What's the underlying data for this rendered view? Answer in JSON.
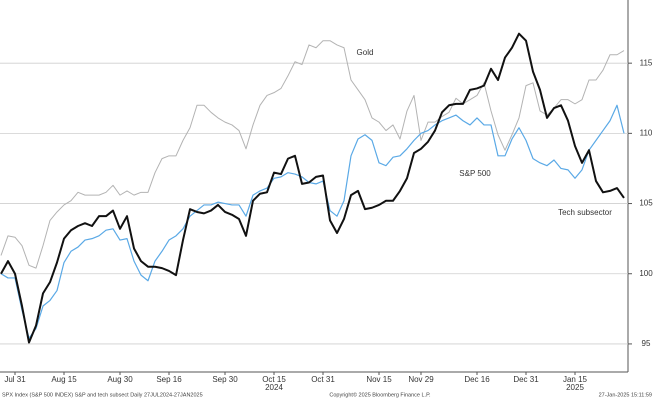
{
  "chart_data": {
    "type": "line",
    "categories": [
      null,
      null,
      "Jul 31",
      null,
      null,
      null,
      null,
      null,
      null,
      "Aug 15",
      null,
      null,
      null,
      null,
      null,
      null,
      null,
      "Aug 30",
      null,
      null,
      null,
      null,
      null,
      null,
      "Sep 16",
      null,
      null,
      null,
      null,
      null,
      null,
      null,
      "Sep 30",
      null,
      null,
      null,
      null,
      null,
      null,
      "Oct 15",
      null,
      null,
      null,
      null,
      null,
      null,
      "Oct 31",
      null,
      null,
      null,
      null,
      null,
      null,
      null,
      "Nov 15",
      null,
      null,
      null,
      null,
      null,
      "Nov 29",
      null,
      null,
      null,
      null,
      null,
      null,
      null,
      "Dec 16",
      null,
      null,
      null,
      null,
      null,
      null,
      "Dec 31",
      null,
      null,
      null,
      null,
      null,
      null,
      "Jan 15",
      null,
      null,
      null,
      null,
      null,
      null,
      null
    ],
    "year_labels": [
      "2024",
      "2025"
    ],
    "series": [
      {
        "name": "Gold",
        "color": "#b3b3b3",
        "values": [
          101.3,
          102.7,
          102.6,
          102.0,
          100.6,
          100.4,
          102.0,
          103.8,
          104.4,
          104.9,
          105.2,
          105.8,
          105.6,
          105.6,
          105.6,
          105.8,
          106.3,
          105.6,
          105.9,
          105.6,
          105.8,
          105.8,
          107.2,
          108.2,
          108.4,
          108.4,
          109.5,
          110.4,
          112.0,
          112.0,
          111.5,
          111.1,
          110.8,
          110.6,
          110.2,
          108.9,
          110.6,
          112.0,
          112.7,
          112.9,
          113.2,
          114.1,
          115.1,
          114.9,
          116.3,
          116.1,
          116.6,
          116.6,
          116.3,
          116.1,
          113.8,
          113.1,
          112.4,
          111.1,
          110.8,
          110.2,
          110.6,
          109.6,
          111.6,
          112.7,
          109.5,
          110.8,
          110.8,
          111.2,
          111.5,
          112.5,
          112.1,
          112.4,
          112.7,
          113.6,
          111.6,
          109.9,
          108.8,
          109.9,
          111.1,
          113.4,
          113.6,
          111.6,
          111.3,
          111.8,
          112.4,
          112.4,
          112.1,
          112.4,
          113.8,
          113.8,
          114.5,
          115.6,
          115.6,
          115.9
        ]
      },
      {
        "name": "S&P 500",
        "color": "#5aa9e6",
        "values": [
          100.0,
          99.7,
          99.7,
          97.4,
          95.4,
          96.1,
          97.7,
          98.1,
          98.8,
          100.8,
          101.6,
          101.9,
          102.4,
          102.5,
          102.7,
          103.1,
          103.2,
          102.4,
          102.5,
          100.9,
          99.9,
          99.5,
          100.9,
          101.6,
          102.4,
          102.7,
          103.2,
          104.1,
          104.5,
          104.9,
          104.9,
          105.1,
          105.0,
          104.9,
          104.9,
          104.1,
          105.6,
          105.9,
          106.1,
          106.8,
          106.9,
          107.2,
          107.1,
          106.9,
          106.5,
          106.4,
          106.6,
          104.5,
          104.1,
          105.2,
          108.4,
          109.6,
          109.9,
          109.5,
          107.9,
          107.7,
          108.3,
          108.4,
          108.9,
          109.5,
          110.0,
          110.2,
          110.6,
          110.9,
          111.1,
          111.3,
          110.9,
          110.6,
          111.1,
          110.6,
          110.6,
          108.4,
          108.4,
          109.6,
          110.4,
          109.5,
          108.2,
          107.9,
          107.7,
          108.1,
          107.5,
          107.4,
          106.8,
          107.4,
          108.8,
          109.5,
          110.2,
          110.9,
          112.0,
          110.0
        ]
      },
      {
        "name": "Tech subsector",
        "color": "#111111",
        "values": [
          100.0,
          100.9,
          100.0,
          97.7,
          95.1,
          96.3,
          98.6,
          99.4,
          100.8,
          102.5,
          103.1,
          103.4,
          103.6,
          103.4,
          104.1,
          104.1,
          104.5,
          103.2,
          104.1,
          101.8,
          100.9,
          100.5,
          100.5,
          100.4,
          100.2,
          99.9,
          102.4,
          104.6,
          104.4,
          104.3,
          104.5,
          104.9,
          104.4,
          104.2,
          103.9,
          102.7,
          105.2,
          105.7,
          105.8,
          107.2,
          107.1,
          108.2,
          108.4,
          106.4,
          106.5,
          106.9,
          107.0,
          103.8,
          102.9,
          103.9,
          105.6,
          105.9,
          104.6,
          104.7,
          104.9,
          105.2,
          105.2,
          105.9,
          106.8,
          108.6,
          108.9,
          109.4,
          110.2,
          111.5,
          112.0,
          112.1,
          112.1,
          113.1,
          113.2,
          113.4,
          114.6,
          113.8,
          115.4,
          116.1,
          117.1,
          116.6,
          114.4,
          113.1,
          111.1,
          111.8,
          112.0,
          110.9,
          109.1,
          107.9,
          108.8,
          106.6,
          105.8,
          105.9,
          106.1,
          105.4
        ]
      }
    ],
    "ylim": [
      93,
      119.5
    ],
    "yticks": [
      95,
      100,
      105,
      110,
      115
    ],
    "grid": true,
    "footer_left": "SPX Index (S&P 500 INDEX) S&P and tech subsect  Daily 27JUL2024-27JAN2025",
    "footer_center": "Copyright© 2025 Bloomberg Finance L.P.",
    "footer_right": "27-Jan-2025 15:11:59"
  }
}
